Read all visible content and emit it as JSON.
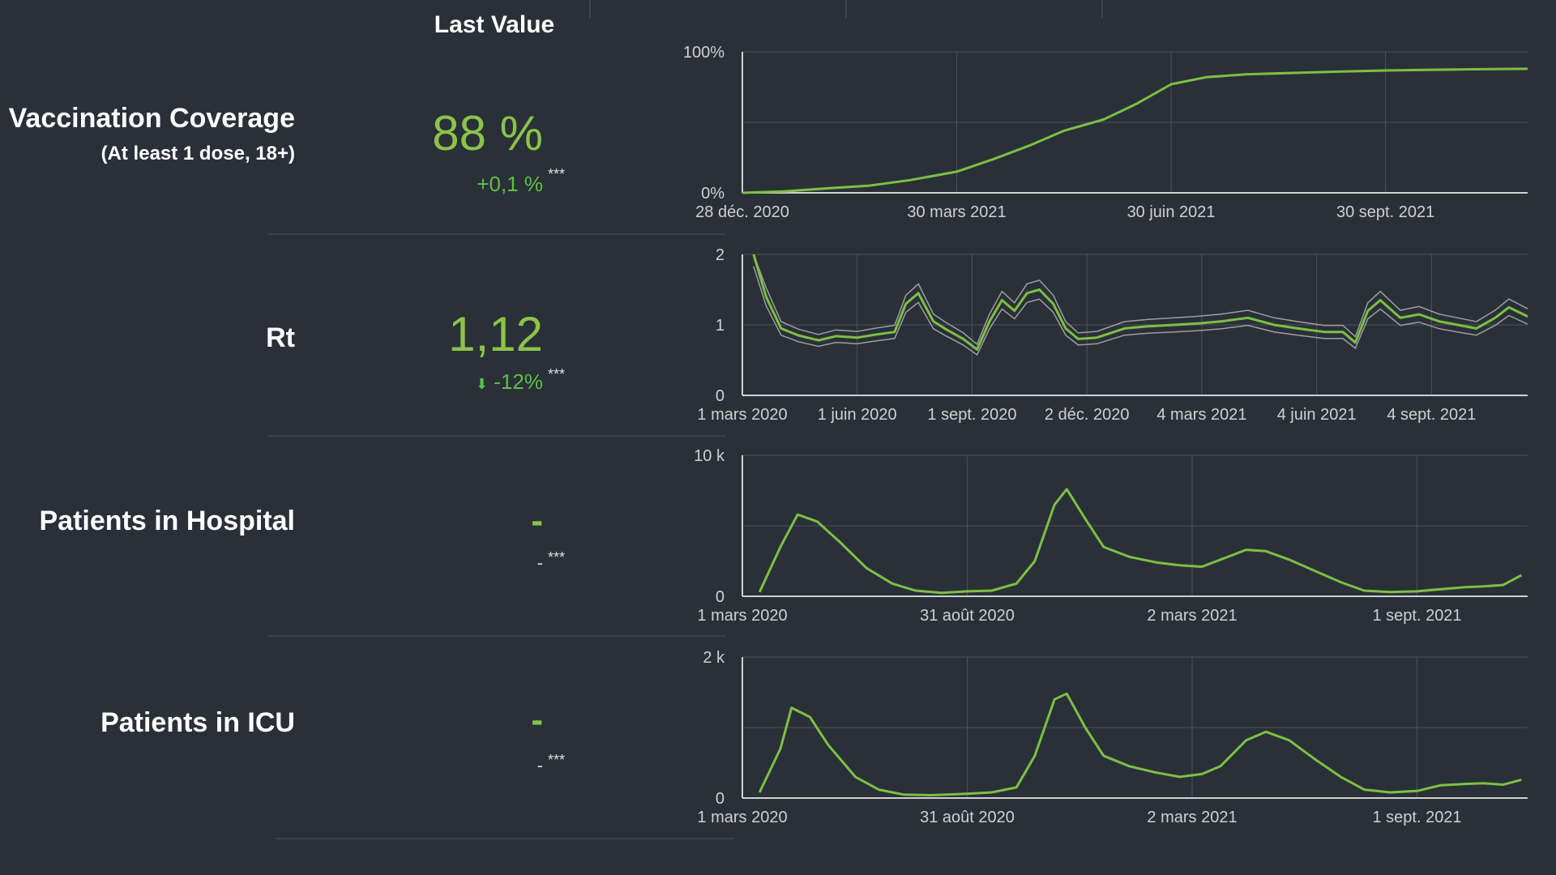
{
  "header": {
    "last_value": "Last Value"
  },
  "stars": "***",
  "metrics": [
    {
      "label": "Vaccination Coverage",
      "sublabel": "(At least 1 dose, 18+)",
      "value": "88 %",
      "change": "+0,1 %"
    },
    {
      "label": "Rt",
      "sublabel": "",
      "value": "1,12",
      "change": "-12%",
      "change_arrow": "arrow-down-icon"
    },
    {
      "label": "Patients in Hospital",
      "sublabel": "",
      "value": "-",
      "change": "-"
    },
    {
      "label": "Patients in ICU",
      "sublabel": "",
      "value": "-",
      "change": "-"
    }
  ],
  "colors": {
    "background": "#2a3038",
    "line": "#7cc043",
    "band": "#9e9e9e",
    "grid": "#4a525b",
    "axis": "#d0d0d0"
  },
  "chart_data": [
    {
      "type": "line",
      "title": "",
      "xlabel": "",
      "ylabel": "",
      "x_ticks": [
        "28 déc. 2020",
        "30 mars 2021",
        "30 juin 2021",
        "30 sept. 2021"
      ],
      "y_ticks": [
        "0%",
        "100%"
      ],
      "ylim": [
        0,
        100
      ],
      "grid": true,
      "series": [
        {
          "x": [
            "2020-12-28",
            "2021-01-15",
            "2021-02-01",
            "2021-02-20",
            "2021-03-10",
            "2021-03-30",
            "2021-04-15",
            "2021-05-01",
            "2021-05-15",
            "2021-06-01",
            "2021-06-15",
            "2021-06-30",
            "2021-07-15",
            "2021-08-01",
            "2021-08-20",
            "2021-09-10",
            "2021-09-30",
            "2021-10-20",
            "2021-11-10",
            "2021-11-30"
          ],
          "values": [
            0,
            1,
            3,
            5,
            9,
            15,
            24,
            34,
            44,
            52,
            63,
            77,
            82,
            84,
            85,
            86,
            86.8,
            87.3,
            87.7,
            88
          ]
        }
      ]
    },
    {
      "type": "line",
      "title": "",
      "xlabel": "",
      "ylabel": "",
      "x_ticks": [
        "1 mars 2020",
        "1 juin 2020",
        "1 sept. 2020",
        "2 déc. 2020",
        "4 mars 2021",
        "4 juin 2021",
        "4 sept. 2021"
      ],
      "y_ticks": [
        "0",
        "1",
        "2"
      ],
      "ylim": [
        0,
        2
      ],
      "grid": true,
      "confidence_band": true,
      "series": [
        {
          "x": [
            "2020-03-10",
            "2020-03-20",
            "2020-04-01",
            "2020-04-15",
            "2020-05-01",
            "2020-05-15",
            "2020-06-01",
            "2020-06-15",
            "2020-07-01",
            "2020-07-10",
            "2020-07-20",
            "2020-08-01",
            "2020-08-10",
            "2020-08-25",
            "2020-09-05",
            "2020-09-15",
            "2020-09-25",
            "2020-10-05",
            "2020-10-15",
            "2020-10-25",
            "2020-11-05",
            "2020-11-15",
            "2020-11-25",
            "2020-12-10",
            "2021-01-01",
            "2021-01-20",
            "2021-02-10",
            "2021-03-01",
            "2021-03-20",
            "2021-04-10",
            "2021-05-01",
            "2021-05-20",
            "2021-06-10",
            "2021-06-25",
            "2021-07-05",
            "2021-07-15",
            "2021-07-25",
            "2021-08-10",
            "2021-08-25",
            "2021-09-10",
            "2021-09-25",
            "2021-10-10",
            "2021-10-25",
            "2021-11-05",
            "2021-11-20"
          ],
          "values": [
            2.0,
            1.4,
            0.95,
            0.85,
            0.78,
            0.84,
            0.82,
            0.86,
            0.9,
            1.3,
            1.45,
            1.05,
            0.95,
            0.8,
            0.65,
            1.05,
            1.35,
            1.2,
            1.45,
            1.5,
            1.3,
            0.95,
            0.8,
            0.82,
            0.95,
            0.98,
            1.0,
            1.02,
            1.05,
            1.1,
            1.0,
            0.95,
            0.9,
            0.9,
            0.75,
            1.2,
            1.35,
            1.1,
            1.15,
            1.05,
            1.0,
            0.95,
            1.1,
            1.25,
            1.12
          ]
        }
      ]
    },
    {
      "type": "line",
      "title": "",
      "xlabel": "",
      "ylabel": "",
      "x_ticks": [
        "1 mars 2020",
        "31 août 2020",
        "2 mars 2021",
        "1 sept. 2021"
      ],
      "y_ticks": [
        "0",
        "10 k"
      ],
      "ylim": [
        0,
        10000
      ],
      "grid": true,
      "series": [
        {
          "x": [
            "2020-03-15",
            "2020-04-01",
            "2020-04-15",
            "2020-05-01",
            "2020-05-20",
            "2020-06-10",
            "2020-07-01",
            "2020-07-20",
            "2020-08-10",
            "2020-08-31",
            "2020-09-20",
            "2020-10-10",
            "2020-10-25",
            "2020-11-10",
            "2020-11-20",
            "2020-12-05",
            "2020-12-20",
            "2021-01-10",
            "2021-02-01",
            "2021-02-20",
            "2021-03-10",
            "2021-03-25",
            "2021-04-15",
            "2021-05-01",
            "2021-05-20",
            "2021-06-10",
            "2021-07-01",
            "2021-07-20",
            "2021-08-10",
            "2021-09-01",
            "2021-09-20",
            "2021-10-10",
            "2021-10-25",
            "2021-11-10",
            "2021-11-25"
          ],
          "values": [
            300,
            3500,
            5800,
            5300,
            3800,
            2000,
            900,
            400,
            250,
            350,
            400,
            900,
            2500,
            6500,
            7600,
            5500,
            3500,
            2800,
            2400,
            2200,
            2100,
            2600,
            3300,
            3200,
            2600,
            1800,
            1000,
            400,
            300,
            350,
            500,
            650,
            700,
            800,
            1500
          ]
        }
      ]
    },
    {
      "type": "line",
      "title": "",
      "xlabel": "",
      "ylabel": "",
      "x_ticks": [
        "1 mars 2020",
        "31 août 2020",
        "2 mars 2021",
        "1 sept. 2021"
      ],
      "y_ticks": [
        "0",
        "2 k"
      ],
      "ylim": [
        0,
        2000
      ],
      "grid": true,
      "series": [
        {
          "x": [
            "2020-03-15",
            "2020-04-01",
            "2020-04-10",
            "2020-04-25",
            "2020-05-10",
            "2020-06-01",
            "2020-06-20",
            "2020-07-10",
            "2020-08-01",
            "2020-08-31",
            "2020-09-20",
            "2020-10-10",
            "2020-10-25",
            "2020-11-10",
            "2020-11-20",
            "2020-12-05",
            "2020-12-20",
            "2021-01-10",
            "2021-02-01",
            "2021-02-20",
            "2021-03-10",
            "2021-03-25",
            "2021-04-15",
            "2021-05-01",
            "2021-05-20",
            "2021-06-10",
            "2021-07-01",
            "2021-07-20",
            "2021-08-10",
            "2021-09-01",
            "2021-09-20",
            "2021-10-10",
            "2021-10-25",
            "2021-11-10",
            "2021-11-25"
          ],
          "values": [
            80,
            700,
            1280,
            1150,
            750,
            300,
            120,
            50,
            40,
            60,
            80,
            150,
            600,
            1400,
            1480,
            1000,
            600,
            450,
            360,
            300,
            340,
            450,
            820,
            940,
            820,
            550,
            300,
            120,
            80,
            100,
            180,
            200,
            210,
            190,
            260
          ]
        }
      ]
    }
  ]
}
